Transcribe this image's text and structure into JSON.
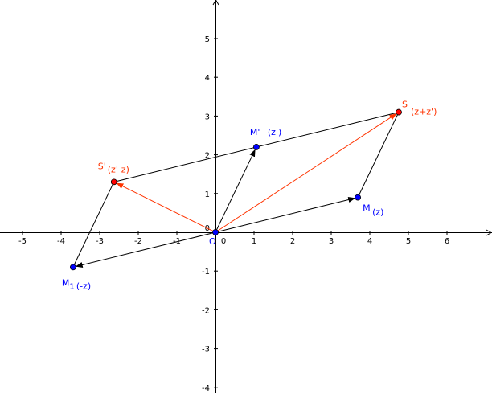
{
  "axes": {
    "x_ticks": [
      -5,
      -4,
      -3,
      -2,
      -1,
      0,
      1,
      2,
      3,
      4,
      5,
      6
    ],
    "y_ticks": [
      -4,
      -3,
      -2,
      -1,
      0,
      1,
      2,
      3,
      4,
      5
    ],
    "xlim": [
      -5.6,
      7.1
    ],
    "ylim": [
      -4.1,
      6.0
    ]
  },
  "colors": {
    "blue_point": "#0000ff",
    "red_point": "#ff0000",
    "red_vector": "#ff3300",
    "black": "#000000",
    "label_red": "#ff3300",
    "label_blue": "#0000ff"
  },
  "points": [
    {
      "id": "O",
      "name": "O",
      "note": "",
      "x": 0,
      "y": 0,
      "color": "blue"
    },
    {
      "id": "M",
      "name": "M",
      "note": "(z)",
      "x": 3.69,
      "y": 0.9,
      "color": "blue"
    },
    {
      "id": "Mp",
      "name": "M'",
      "note": "(z')",
      "x": 1.06,
      "y": 2.2,
      "color": "blue"
    },
    {
      "id": "M1",
      "name": "M",
      "sub": "1",
      "note": "(-z)",
      "x": -3.69,
      "y": -0.9,
      "color": "blue"
    },
    {
      "id": "S",
      "name": "S",
      "note": "(z+z')",
      "x": 4.75,
      "y": 3.1,
      "color": "red"
    },
    {
      "id": "Sp",
      "name": "S'",
      "note": "(z'-z)",
      "x": -2.63,
      "y": 1.3,
      "color": "red"
    }
  ],
  "vectors": [
    {
      "from": "O",
      "to": "M",
      "color": "black"
    },
    {
      "from": "O",
      "to": "Mp",
      "color": "black"
    },
    {
      "from": "O",
      "to": "M1",
      "color": "black"
    },
    {
      "from": "O",
      "to": "S",
      "color": "red"
    },
    {
      "from": "O",
      "to": "Sp",
      "color": "red"
    }
  ],
  "segments": [
    {
      "from": "M",
      "to": "S"
    },
    {
      "from": "Sp",
      "to": "S"
    },
    {
      "from": "Sp",
      "to": "M1"
    }
  ]
}
